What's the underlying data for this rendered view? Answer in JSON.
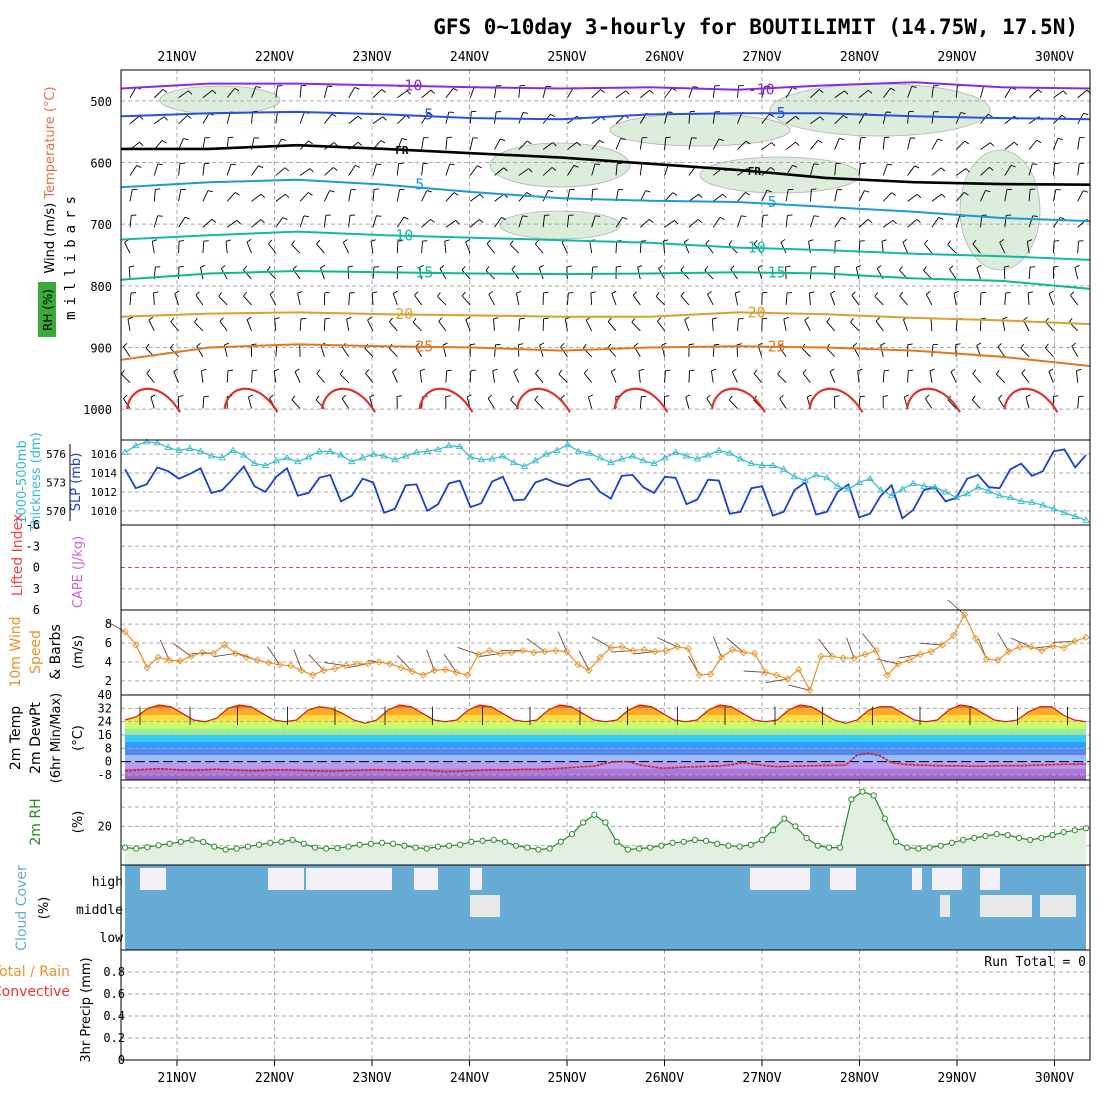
{
  "title": "GFS 0~10day 3-hourly for BOUTILIMIT (14.75W, 17.5N)",
  "days": [
    "21NOV",
    "22NOV",
    "23NOV",
    "24NOV",
    "25NOV",
    "26NOV",
    "27NOV",
    "28NOV",
    "29NOV",
    "30NOV"
  ],
  "run_total_label": "Run Total = 0",
  "colors": {
    "cyan_line": "#33bbcc",
    "blue_line": "#1a3fcf",
    "orange_line": "#e8932a",
    "green_line": "#2a8a2a",
    "cloud_fill": "#66aad6",
    "rh_fill": "#cfe7cf",
    "temp_red": "#e03010",
    "grid": "#b0b0b0"
  },
  "chart_data": [
    {
      "id": "upper_air",
      "type": "contour",
      "ylabel_left": [
        "Wind (m/s)",
        "Temperature (°C)",
        "RH (%)"
      ],
      "ylabel_right": "millibars",
      "yticks": [
        500,
        600,
        700,
        800,
        900,
        1000
      ],
      "ylim": [
        450,
        1050
      ],
      "temperature_contours": [
        {
          "label": "-10",
          "level": -10,
          "color": "#8a2be2",
          "p": [
            480,
            472,
            472,
            475,
            478,
            480,
            478,
            482,
            475,
            470,
            478,
            480
          ]
        },
        {
          "label": "-5",
          "level": -5,
          "color": "#2a50dd",
          "p": [
            525,
            520,
            518,
            522,
            528,
            530,
            522,
            520,
            520,
            525,
            528,
            530
          ]
        },
        {
          "label": "FR",
          "level": 0,
          "color": "#000000",
          "p": [
            578,
            578,
            572,
            578,
            585,
            592,
            602,
            612,
            625,
            632,
            635,
            636
          ]
        },
        {
          "label": "5",
          "level": 5,
          "color": "#1a9ad6",
          "p": [
            640,
            632,
            628,
            636,
            648,
            658,
            662,
            664,
            672,
            680,
            690,
            695
          ]
        },
        {
          "label": "10",
          "level": 10,
          "color": "#14b8a8",
          "p": [
            725,
            718,
            712,
            718,
            722,
            726,
            730,
            738,
            742,
            748,
            752,
            758
          ]
        },
        {
          "label": "15",
          "level": 15,
          "color": "#10b890",
          "p": [
            790,
            780,
            776,
            778,
            780,
            781,
            780,
            778,
            780,
            788,
            792,
            805
          ]
        },
        {
          "label": "20",
          "level": 20,
          "color": "#d9a030",
          "p": [
            850,
            845,
            843,
            846,
            848,
            850,
            850,
            843,
            846,
            852,
            856,
            862
          ]
        },
        {
          "label": "25",
          "level": 25,
          "color": "#e07820",
          "p": [
            920,
            900,
            895,
            898,
            900,
            905,
            900,
            898,
            900,
            905,
            915,
            930
          ]
        }
      ],
      "label_positions_note": "labels drawn near contour lines"
    },
    {
      "id": "sfc_pressure",
      "type": "line",
      "ylabel_left": [
        "1000-500mb",
        "Thickness (dm)"
      ],
      "ylabel_right": "SLP (mb)",
      "yticks_left": [
        570,
        573,
        576
      ],
      "yticks_right": [
        1010,
        1012,
        1014,
        1016
      ],
      "series": [
        {
          "name": "SLP",
          "axis": "right",
          "color": "#1a3fcf",
          "values": [
            1014.4,
            1012.4,
            1012.8,
            1014.6,
            1014.2,
            1013.4,
            1013.9,
            1014.5,
            1011.9,
            1012.2,
            1013.4,
            1014.7,
            1012.6,
            1012.0,
            1013.6,
            1014.5,
            1011.6,
            1011.9,
            1013.5,
            1013.8,
            1011.0,
            1011.6,
            1013.4,
            1013.0,
            1009.8,
            1010.2,
            1012.7,
            1012.8,
            1010.0,
            1010.7,
            1012.9,
            1013.2,
            1010.4,
            1010.8,
            1013.1,
            1013.6,
            1011.1,
            1011.2,
            1013.0,
            1013.4,
            1012.9,
            1012.6,
            1013.2,
            1013.4,
            1012.0,
            1011.3,
            1013.7,
            1013.8,
            1012.5,
            1011.9,
            1013.6,
            1013.5,
            1010.7,
            1011.2,
            1013.3,
            1013.2,
            1009.7,
            1009.9,
            1012.4,
            1012.6,
            1009.5,
            1009.9,
            1012.2,
            1013.0,
            1009.6,
            1009.9,
            1012.0,
            1012.8,
            1009.3,
            1009.7,
            1011.6,
            1012.7,
            1009.2,
            1010.1,
            1012.2,
            1012.5,
            1011.0,
            1011.4,
            1013.4,
            1013.8,
            1012.5,
            1012.4,
            1014.4,
            1015.0,
            1013.7,
            1014.2,
            1016.3,
            1016.5,
            1014.6,
            1015.9
          ]
        },
        {
          "name": "Thickness",
          "axis": "left",
          "color": "#33bbcc",
          "values": [
            576.2,
            576.9,
            577.3,
            577.2,
            576.7,
            576.4,
            576.6,
            576.3,
            575.8,
            575.6,
            576.4,
            575.9,
            575.0,
            574.8,
            575.3,
            575.6,
            575.2,
            575.7,
            576.3,
            576.3,
            575.9,
            575.2,
            575.6,
            576.0,
            575.8,
            575.4,
            575.8,
            576.2,
            576.3,
            576.5,
            576.9,
            576.8,
            575.7,
            575.4,
            575.5,
            575.8,
            575.1,
            574.7,
            575.3,
            576.0,
            576.4,
            577.0,
            576.3,
            576.1,
            575.6,
            575.1,
            575.5,
            575.8,
            575.3,
            575.0,
            575.6,
            576.2,
            575.8,
            575.5,
            575.9,
            576.4,
            576.1,
            575.5,
            575.0,
            574.8,
            574.8,
            574.4,
            573.6,
            573.2,
            573.8,
            573.5,
            572.6,
            572.3,
            573.0,
            573.4,
            572.2,
            571.6,
            572.3,
            572.9,
            572.6,
            572.5,
            572.0,
            571.4,
            571.8,
            572.5,
            572.1,
            571.6,
            571.4,
            571.0,
            570.9,
            570.6,
            570.2,
            569.8,
            569.4,
            569.0
          ]
        }
      ]
    },
    {
      "id": "stability",
      "type": "line",
      "ylabel_left": [
        "Lifted Index",
        "CAPE (J/kg)"
      ],
      "yticks": [
        "-6",
        "-3",
        "0",
        "3",
        "6"
      ],
      "series": [
        {
          "name": "Lifted Index",
          "values": [
            0
          ]
        }
      ]
    },
    {
      "id": "wind10m",
      "type": "line",
      "ylabel_left": [
        "10m Wind",
        "Speed",
        "& Barbs"
      ],
      "yunit": "(m/s)",
      "yticks": [
        2,
        4,
        6,
        8
      ],
      "ylim": [
        0.5,
        9.5
      ],
      "series": [
        {
          "name": "10m wind speed",
          "color": "#e8932a",
          "values": [
            7.2,
            5.8,
            3.4,
            4.5,
            4.2,
            4.1,
            4.6,
            5.0,
            4.9,
            5.8,
            4.9,
            4.5,
            4.2,
            3.9,
            3.7,
            3.6,
            3.1,
            2.6,
            3.1,
            3.3,
            3.6,
            3.8,
            3.8,
            4.0,
            3.8,
            3.4,
            3.0,
            2.6,
            3.1,
            3.2,
            2.9,
            2.6,
            4.8,
            5.2,
            4.9,
            5.0,
            5.2,
            5.0,
            5.1,
            5.2,
            5.1,
            3.7,
            3.1,
            4.5,
            5.5,
            5.6,
            5.2,
            5.3,
            5.1,
            5.2,
            5.6,
            5.4,
            2.6,
            2.7,
            4.5,
            5.3,
            5.0,
            4.9,
            2.9,
            2.6,
            2.2,
            3.2,
            1.0,
            4.6,
            4.6,
            4.4,
            4.4,
            4.8,
            5.2,
            2.6,
            3.8,
            4.2,
            4.8,
            5.1,
            5.8,
            6.8,
            9.0,
            6.5,
            4.3,
            4.2,
            5.1,
            5.6,
            5.6,
            5.2,
            5.7,
            5.5,
            6.2,
            6.6
          ]
        }
      ]
    },
    {
      "id": "temp2m",
      "type": "area",
      "ylabel_left": [
        "2m Temp",
        "2m DewPt",
        "(6hr Min/Max)"
      ],
      "yunit": "(°C)",
      "yticks": [
        -8,
        0,
        8,
        16,
        24,
        32,
        40
      ],
      "ylim": [
        -11,
        40
      ],
      "series": [
        {
          "name": "2m Temp",
          "color": "#e03010",
          "values": [
            25,
            27,
            32,
            34,
            33,
            29,
            25,
            24,
            26,
            32,
            34,
            33,
            29,
            25,
            24,
            25,
            31,
            33,
            32,
            29,
            25,
            23,
            25,
            31,
            34,
            33,
            29,
            25,
            24,
            25,
            31,
            34,
            33,
            29,
            25,
            24,
            25,
            31,
            34,
            33,
            29,
            25,
            24,
            25,
            31,
            34,
            33,
            29,
            25,
            24,
            25,
            31,
            34,
            33,
            29,
            25,
            24,
            25,
            31,
            34,
            33,
            29,
            25,
            23,
            25,
            31,
            33,
            33,
            29,
            25,
            24,
            25,
            31,
            34,
            33,
            29,
            25,
            24,
            25,
            30,
            33,
            33,
            28,
            25,
            24
          ]
        },
        {
          "name": "2m DewPt",
          "color": "#cc2222",
          "values": [
            -5.5,
            -5.0,
            -4.5,
            -4.2,
            -4.6,
            -5.0,
            -5.2,
            -4.8,
            -4.5,
            -4.8,
            -5.2,
            -5.5,
            -5.3,
            -5.0,
            -4.9,
            -5.2,
            -5.4,
            -5.6,
            -5.8,
            -5.5,
            -5.3,
            -5.0,
            -4.8,
            -5.0,
            -5.3,
            -5.1,
            -4.9,
            -5.5,
            -6.0,
            -5.8,
            -5.6,
            -5.2,
            -4.9,
            -5.0,
            -4.8,
            -4.5,
            -4.6,
            -4.4,
            -4.0,
            -3.5,
            -3.0,
            -2.8,
            -1.0,
            0.0,
            0.0,
            -2.0,
            -3.0,
            -4.0,
            -3.6,
            -3.2,
            -3.0,
            -2.8,
            -2.6,
            -1.8,
            -0.5,
            -1.5,
            -2.5,
            -3.0,
            -2.8,
            -2.6,
            -2.5,
            -2.3,
            -2.2,
            -2.0,
            4.0,
            5.0,
            3.5,
            -0.5,
            -1.5,
            -2.0,
            -2.2,
            -2.4,
            -2.5,
            -2.5,
            -2.8,
            -2.7,
            -2.5,
            -2.4,
            -2.4,
            -2.3,
            -2.0,
            -1.8,
            -1.6,
            -1.5,
            -1.4
          ]
        }
      ]
    },
    {
      "id": "rh2m",
      "type": "area",
      "ylabel_left": [
        "2m RH"
      ],
      "yunit": "(%)",
      "yticks": [
        20
      ],
      "ylim": [
        0,
        44
      ],
      "series": [
        {
          "name": "2m RH",
          "color": "#2a8a2a",
          "values": [
            9,
            8.5,
            9.2,
            10.2,
            11,
            12,
            13,
            12,
            9.5,
            8,
            8.5,
            9.5,
            10.5,
            11.5,
            12,
            13,
            11,
            9,
            8.5,
            8.7,
            9.5,
            10.5,
            11,
            11.5,
            11,
            10,
            9,
            8.5,
            9.5,
            10,
            10.5,
            12,
            12.5,
            13,
            12,
            10,
            9,
            8,
            8.5,
            12,
            16,
            22,
            26,
            22,
            12,
            8,
            8.5,
            9,
            10,
            11.5,
            12,
            13,
            12.5,
            11,
            10,
            9.5,
            10.5,
            13,
            18,
            24,
            20,
            14,
            10,
            9,
            9,
            34,
            38,
            36,
            24,
            12,
            9,
            8.5,
            9,
            10,
            11.5,
            13,
            14,
            15,
            16,
            15.5,
            14,
            13,
            14,
            15.5,
            17,
            18,
            19
          ]
        }
      ]
    },
    {
      "id": "cloud",
      "type": "heatmap",
      "ylabel_left": [
        "Cloud Cover",
        "(%)"
      ],
      "rows": [
        "high",
        "middle",
        "low"
      ]
    },
    {
      "id": "precip",
      "type": "bar",
      "ylabel_left": [
        "Total / Rain",
        "Convective",
        "3hr Precip (mm)"
      ],
      "yticks": [
        "0",
        "0.2",
        "0.4",
        "0.6",
        "0.8"
      ],
      "ylim": [
        0,
        1
      ],
      "values": []
    }
  ]
}
